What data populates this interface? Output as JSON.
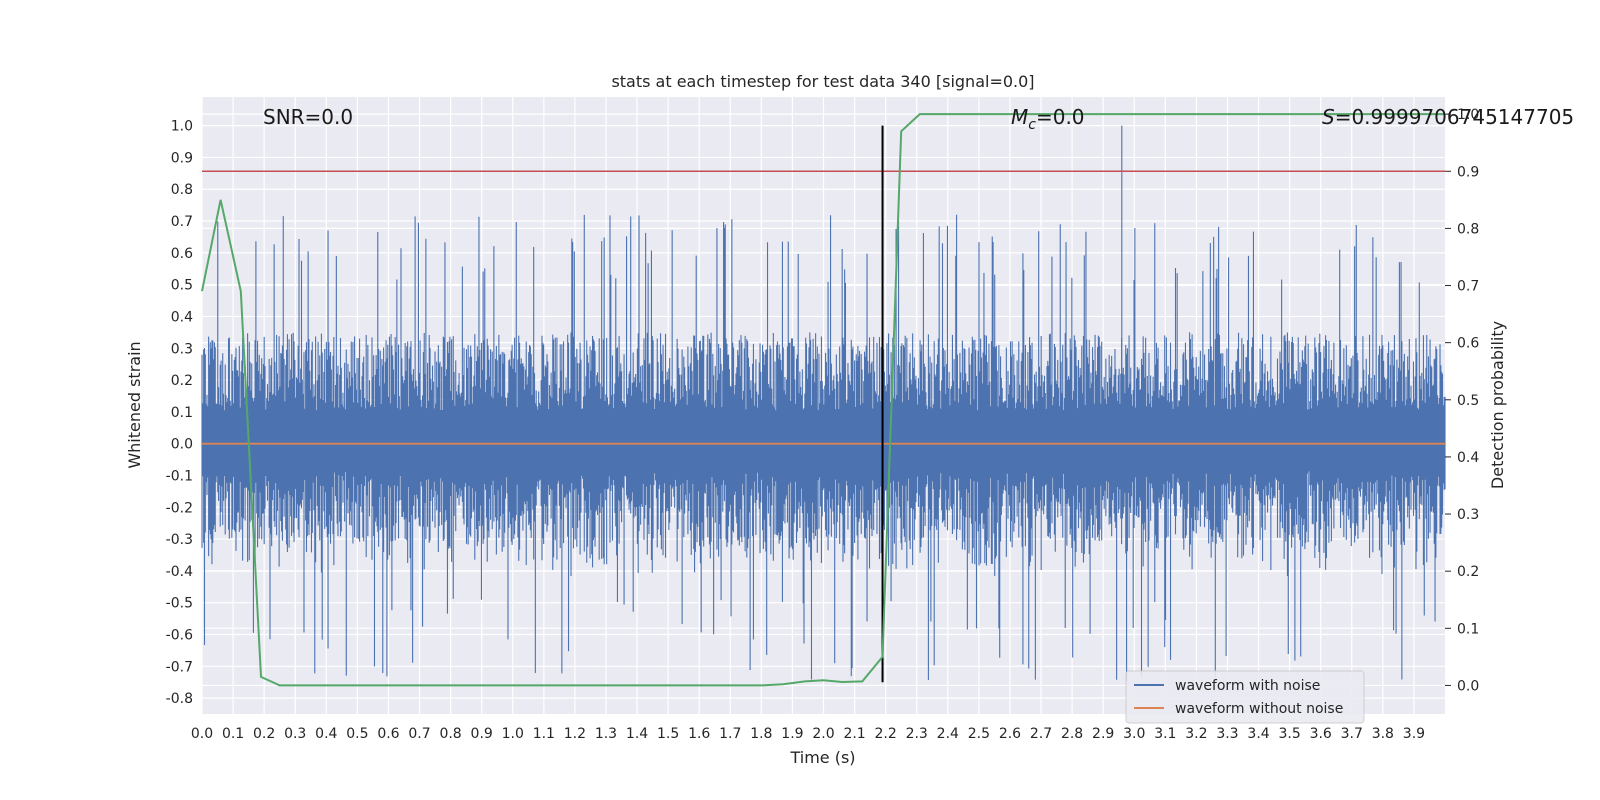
{
  "chart_data": {
    "type": "line",
    "title": "stats at each timestep for test data 340 [signal=0.0]",
    "xlabel": "Time (s)",
    "ylabel": "Whitened strain",
    "y2label": "Detection probability",
    "xlim": [
      0.0,
      4.0
    ],
    "ylim": [
      -0.85,
      1.09
    ],
    "y2lim": [
      -0.05,
      1.03
    ],
    "x_ticks": [
      "0.0",
      "0.1",
      "0.2",
      "0.3",
      "0.4",
      "0.5",
      "0.6",
      "0.7",
      "0.8",
      "0.9",
      "1.0",
      "1.1",
      "1.2",
      "1.3",
      "1.4",
      "1.5",
      "1.6",
      "1.7",
      "1.8",
      "1.9",
      "2.0",
      "2.1",
      "2.2",
      "2.3",
      "2.4",
      "2.5",
      "2.6",
      "2.7",
      "2.8",
      "2.9",
      "3.0",
      "3.1",
      "3.2",
      "3.3",
      "3.4",
      "3.5",
      "3.6",
      "3.7",
      "3.8",
      "3.9"
    ],
    "y_ticks": [
      "1.0",
      "0.9",
      "0.8",
      "0.7",
      "0.6",
      "0.5",
      "0.4",
      "0.3",
      "0.2",
      "0.1",
      "0.0",
      "-0.1",
      "-0.2",
      "-0.3",
      "-0.4",
      "-0.5",
      "-0.6",
      "-0.7",
      "-0.8"
    ],
    "y2_ticks": [
      "1.0",
      "0.9",
      "0.8",
      "0.7",
      "0.6",
      "0.5",
      "0.4",
      "0.3",
      "0.2",
      "0.1",
      "0.0"
    ],
    "annotations": {
      "snr": "SNR=0.0",
      "mc_symbol": "M",
      "mc_sub": "c",
      "mc_value": "=0.0",
      "s_symbol": "S",
      "s_value": "=0.9999706745147705"
    },
    "legend": {
      "placement": "bottom-right",
      "entries": [
        "waveform with noise",
        "waveform without noise"
      ]
    },
    "colors": {
      "noise": "#4c72b0",
      "clean": "#dd8452",
      "probability": "#55a868",
      "threshold": "#c44e52",
      "marker": "#000000",
      "background": "#eaeaf2"
    },
    "threshold_probability": 0.9,
    "vertical_marker_time": 2.19,
    "noise_spike": {
      "time": 2.96,
      "value": 1.0
    },
    "noise_envelope": {
      "typical_peak": 0.35,
      "max_peak": 0.72,
      "min_trough": -0.75
    },
    "detection_probability": {
      "x": [
        0.0,
        0.06,
        0.125,
        0.19,
        0.25,
        0.31,
        0.375,
        0.44,
        0.5,
        1.0,
        1.5,
        1.8,
        1.87,
        1.94,
        2.0,
        2.06,
        2.125,
        2.19,
        2.25,
        2.31,
        2.375,
        2.5,
        3.0,
        3.5,
        4.0
      ],
      "y": [
        0.69,
        0.85,
        0.69,
        0.015,
        0.0,
        0.0,
        0.0,
        0.0,
        0.0,
        0.0,
        0.0,
        0.0,
        0.002,
        0.007,
        0.009,
        0.006,
        0.007,
        0.05,
        0.97,
        1.0,
        1.0,
        1.0,
        1.0,
        1.0,
        1.0
      ]
    }
  }
}
